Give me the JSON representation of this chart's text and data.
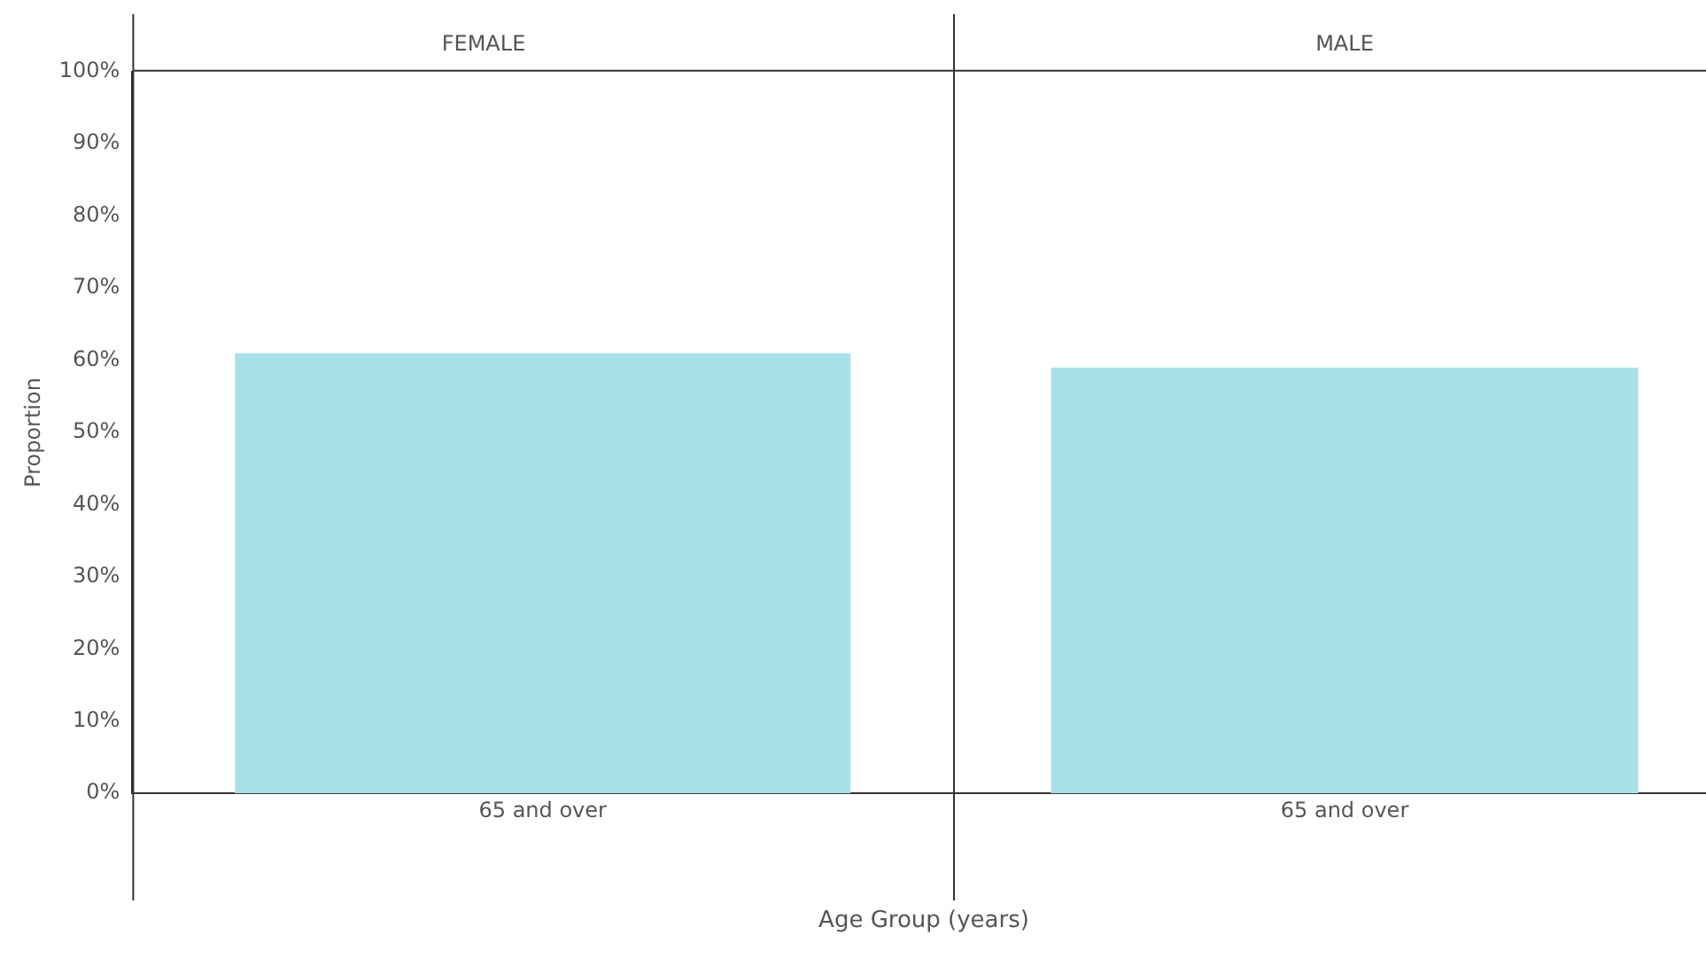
{
  "chart_data": [
    {
      "type": "bar",
      "title": "FEMALE",
      "ylabel": "Proportion",
      "xlabel": "Age Group (years)",
      "categories": [
        "65 and over"
      ],
      "values": [
        61
      ],
      "color": "#a9e1ea",
      "ylim": [
        0,
        100
      ],
      "yticks": [
        {
          "value": 0,
          "label": "0%"
        },
        {
          "value": 10,
          "label": "10%"
        },
        {
          "value": 20,
          "label": "20%"
        },
        {
          "value": 30,
          "label": "30%"
        },
        {
          "value": 40,
          "label": "40%"
        },
        {
          "value": 50,
          "label": "50%"
        },
        {
          "value": 60,
          "label": "60%"
        },
        {
          "value": 70,
          "label": "70%"
        },
        {
          "value": 80,
          "label": "80%"
        },
        {
          "value": 90,
          "label": "90%"
        },
        {
          "value": 100,
          "label": "100%"
        }
      ],
      "grid": false
    },
    {
      "type": "bar",
      "title": "MALE",
      "categories": [
        "65 and over"
      ],
      "values": [
        59
      ],
      "color": "#a9e1ea",
      "ylim": [
        0,
        100
      ],
      "grid": false,
      "tick_labels": "x"
    }
  ]
}
